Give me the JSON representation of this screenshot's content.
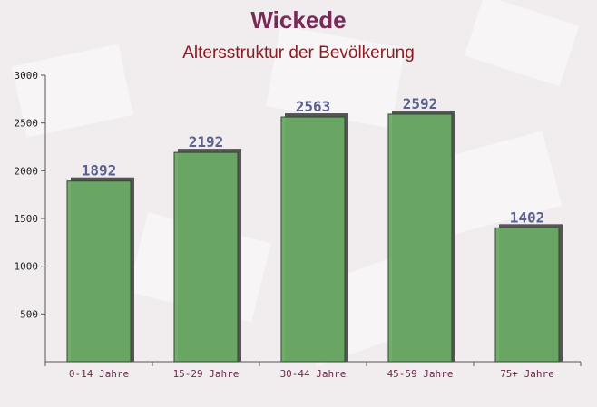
{
  "chart_data": {
    "type": "bar",
    "title": "Wickede",
    "subtitle": "Altersstruktur der Bevölkerung",
    "categories": [
      "0-14 Jahre",
      "15-29 Jahre",
      "30-44 Jahre",
      "45-59 Jahre",
      "75+ Jahre"
    ],
    "values": [
      1892,
      2192,
      2563,
      2592,
      1402
    ],
    "color": "#6aaa64",
    "ylim": [
      0,
      3000
    ],
    "yticks": [
      500,
      1000,
      1500,
      2000,
      2500,
      3000
    ]
  }
}
